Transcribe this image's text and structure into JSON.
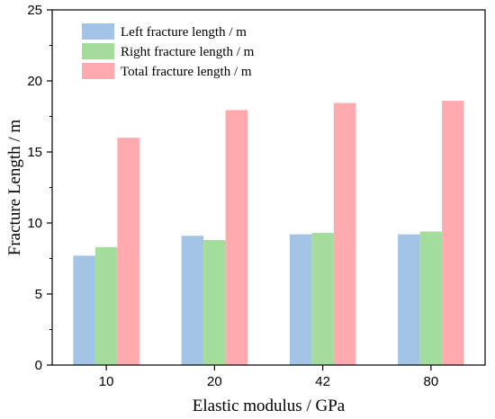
{
  "chart_data": {
    "type": "bar",
    "title": "",
    "xlabel": "Elastic modulus / GPa",
    "ylabel": "Fracture Length / m",
    "categories": [
      "10",
      "20",
      "42",
      "80"
    ],
    "ylim": [
      0,
      25
    ],
    "yticks": [
      0,
      5,
      10,
      15,
      20,
      25
    ],
    "grid": false,
    "legend_position": "top-left",
    "series": [
      {
        "name": "Left fracture length / m",
        "color": "#a3c4e6",
        "values": [
          7.7,
          9.1,
          9.2,
          9.2
        ]
      },
      {
        "name": "Right fracture length / m",
        "color": "#a4dc9c",
        "values": [
          8.3,
          8.8,
          9.3,
          9.4
        ]
      },
      {
        "name": "Total fracture length / m",
        "color": "#ffaaae",
        "values": [
          16.0,
          17.95,
          18.45,
          18.6
        ]
      }
    ]
  }
}
